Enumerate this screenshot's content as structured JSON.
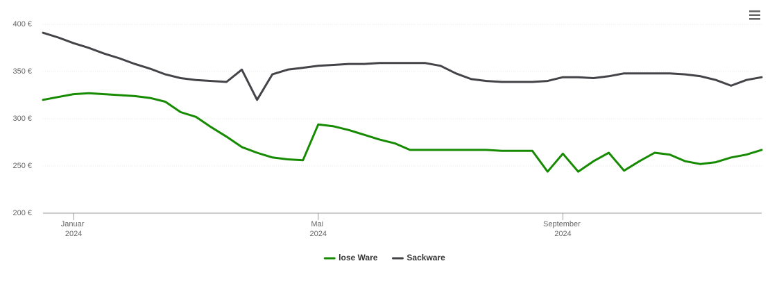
{
  "chart_data": {
    "type": "line",
    "categories": [
      null,
      null,
      "Januar 2024",
      null,
      null,
      null,
      null,
      null,
      null,
      null,
      null,
      null,
      null,
      null,
      null,
      null,
      null,
      null,
      "Mai 2024",
      null,
      null,
      null,
      null,
      null,
      null,
      null,
      null,
      null,
      null,
      null,
      null,
      null,
      null,
      null,
      "September 2024",
      null,
      null,
      null,
      null,
      null,
      null,
      null,
      null,
      null,
      null,
      null,
      null,
      null
    ],
    "series": [
      {
        "name": "lose Ware",
        "color": "#168a00",
        "values": [
          320,
          323,
          326,
          327,
          326,
          325,
          324,
          322,
          318,
          307,
          302,
          291,
          281,
          270,
          264,
          259,
          257,
          256,
          294,
          292,
          288,
          283,
          278,
          274,
          267,
          267,
          267,
          267,
          267,
          267,
          266,
          266,
          266,
          244,
          263,
          244,
          255,
          264,
          245,
          255,
          264,
          262,
          255,
          252,
          254,
          259,
          262,
          267
        ]
      },
      {
        "name": "Sackware",
        "color": "#434348",
        "values": [
          391,
          386,
          380,
          375,
          369,
          364,
          358,
          353,
          347,
          343,
          341,
          340,
          339,
          352,
          320,
          347,
          352,
          354,
          356,
          357,
          358,
          358,
          359,
          359,
          359,
          359,
          356,
          348,
          342,
          340,
          339,
          339,
          339,
          340,
          344,
          344,
          343,
          345,
          348,
          348,
          348,
          348,
          347,
          345,
          341,
          335,
          341,
          344
        ]
      }
    ],
    "ylim": [
      200,
      400
    ],
    "yticks": [
      {
        "value": 200,
        "label": "200 €"
      },
      {
        "value": 250,
        "label": "250 €"
      },
      {
        "value": 300,
        "label": "300 €"
      },
      {
        "value": 350,
        "label": "350 €"
      },
      {
        "value": 400,
        "label": "400 €"
      }
    ],
    "grid": true,
    "legend": "bottom"
  }
}
